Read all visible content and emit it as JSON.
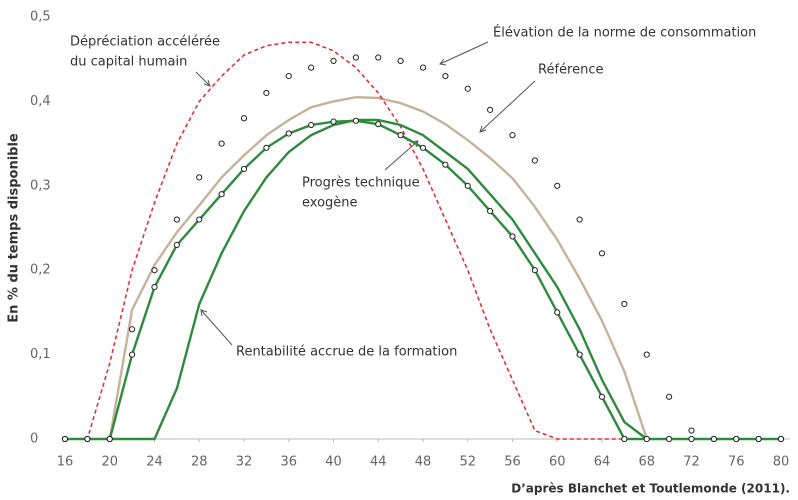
{
  "chart_data": {
    "type": "line",
    "y_label": "En % du temps disponible",
    "source": "D’après Blanchet et Toutlemonde (2011).",
    "x": [
      16,
      18,
      20,
      22,
      24,
      26,
      28,
      30,
      32,
      34,
      36,
      38,
      40,
      42,
      44,
      46,
      48,
      50,
      52,
      54,
      56,
      58,
      60,
      62,
      64,
      66,
      68,
      70,
      72,
      74,
      76,
      78,
      80
    ],
    "xlim": [
      16,
      80
    ],
    "xticks": [
      16,
      20,
      24,
      28,
      32,
      36,
      40,
      44,
      48,
      52,
      56,
      60,
      64,
      68,
      72,
      76,
      80
    ],
    "ylim": [
      0,
      0.5
    ],
    "yticks": [
      0,
      {
        "value": 0.1,
        "label": "0,1"
      },
      {
        "value": 0.2,
        "label": "0,2"
      },
      {
        "value": 0.3,
        "label": "0,3"
      },
      {
        "value": 0.4,
        "label": "0,4"
      },
      {
        "value": 0.5,
        "label": "0,5"
      }
    ],
    "series": [
      {
        "color": "#c4b39a",
        "style": "solid",
        "values": [
          null,
          null,
          0,
          0.153,
          0.206,
          0.245,
          0.277,
          0.31,
          0.336,
          0.36,
          0.378,
          0.393,
          0.4,
          0.405,
          0.404,
          0.398,
          0.388,
          0.373,
          0.354,
          0.333,
          0.309,
          0.275,
          0.236,
          0.19,
          0.14,
          0.08,
          0,
          null,
          null,
          null,
          null,
          null,
          null
        ]
      },
      {
        "color": "#e0303a",
        "style": "dashed",
        "values": [
          0,
          0,
          0.09,
          0.2,
          0.28,
          0.35,
          0.4,
          0.43,
          0.455,
          0.466,
          0.47,
          0.47,
          0.46,
          0.44,
          0.41,
          0.37,
          0.32,
          0.26,
          0.2,
          0.13,
          0.07,
          0.01,
          0,
          0,
          0,
          0,
          0,
          null,
          null,
          null,
          null,
          null,
          null
        ]
      },
      {
        "color": "#2e8b3e",
        "style": "solid",
        "values": [
          null,
          null,
          0,
          0,
          0,
          0.06,
          0.16,
          0.22,
          0.27,
          0.31,
          0.34,
          0.36,
          0.372,
          0.378,
          0.378,
          0.372,
          0.36,
          0.34,
          0.32,
          0.29,
          0.26,
          0.22,
          0.18,
          0.13,
          0.07,
          0.02,
          0,
          null,
          null,
          null,
          null,
          null,
          null
        ]
      },
      {
        "color": "#2e8b3e",
        "style": "line-circles",
        "values": [
          0,
          0,
          0,
          0.1,
          0.18,
          0.23,
          0.26,
          0.29,
          0.32,
          0.345,
          0.362,
          0.372,
          0.376,
          0.377,
          0.373,
          0.36,
          0.345,
          0.325,
          0.3,
          0.27,
          0.24,
          0.2,
          0.15,
          0.1,
          0.05,
          0,
          0,
          0,
          0,
          0,
          0,
          0,
          0
        ]
      },
      {
        "color": "#333333",
        "style": "circles",
        "values": [
          0,
          0,
          0,
          0.13,
          0.2,
          0.26,
          0.31,
          0.35,
          0.38,
          0.41,
          0.43,
          0.44,
          0.448,
          0.452,
          0.452,
          0.448,
          0.44,
          0.43,
          0.415,
          0.39,
          0.36,
          0.33,
          0.3,
          0.26,
          0.22,
          0.16,
          0.1,
          0.05,
          0.01,
          0,
          0,
          0,
          0
        ]
      }
    ],
    "annotations": [
      {
        "lines": [
          "Dépréciation accélérée",
          "du capital humain"
        ]
      },
      {
        "lines": [
          "Élévation de la norme de consommation"
        ]
      },
      {
        "lines": [
          "Référence"
        ]
      },
      {
        "lines": [
          "Progrès technique",
          "exogène"
        ]
      },
      {
        "lines": [
          "Rentabilité accrue de la formation"
        ]
      }
    ]
  }
}
